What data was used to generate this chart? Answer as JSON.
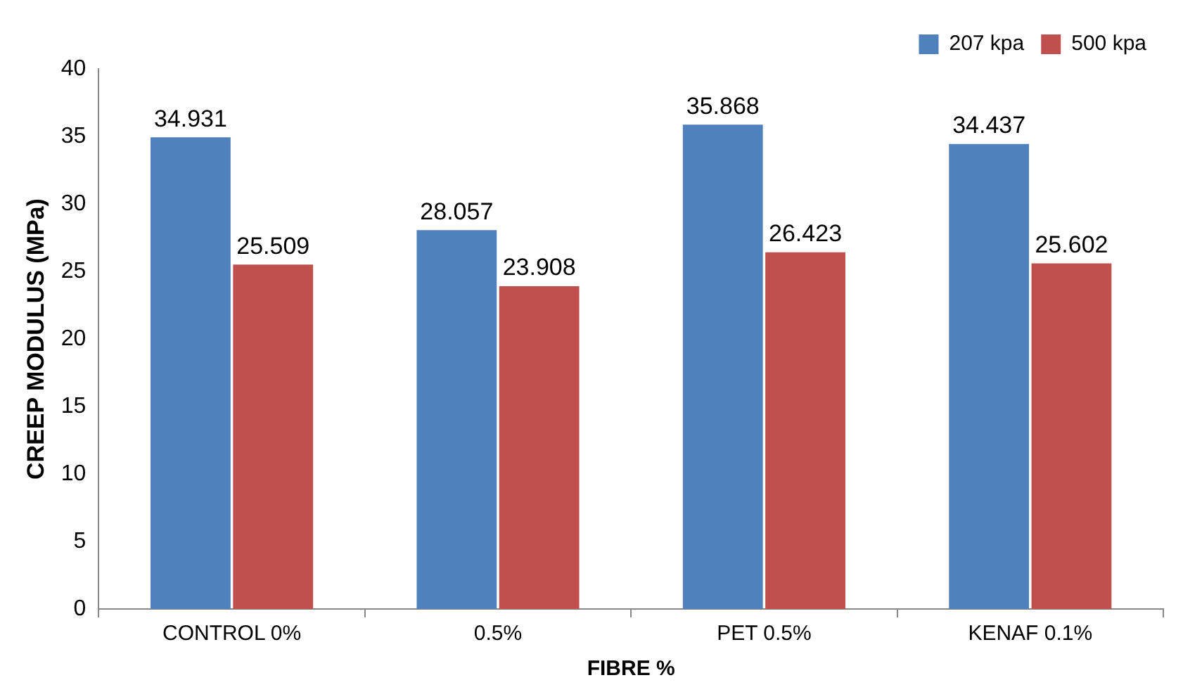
{
  "chart_data": {
    "type": "bar",
    "xlabel": "FIBRE %",
    "ylabel": "CREEP MODULUS (MPa)",
    "categories": [
      "CONTROL 0%",
      "0.5%",
      "PET 0.5%",
      "KENAF 0.1%"
    ],
    "series": [
      {
        "name": "207 kpa",
        "color": "#4f81bd",
        "values": [
          34.931,
          28.057,
          35.868,
          34.437
        ]
      },
      {
        "name": "500 kpa",
        "color": "#c0504d",
        "values": [
          25.509,
          23.908,
          26.423,
          25.602
        ]
      }
    ],
    "ylim": [
      0,
      40
    ],
    "yticks": [
      0,
      5,
      10,
      15,
      20,
      25,
      30,
      35,
      40
    ],
    "grid": false,
    "legend": "top right",
    "data_labels": true
  }
}
